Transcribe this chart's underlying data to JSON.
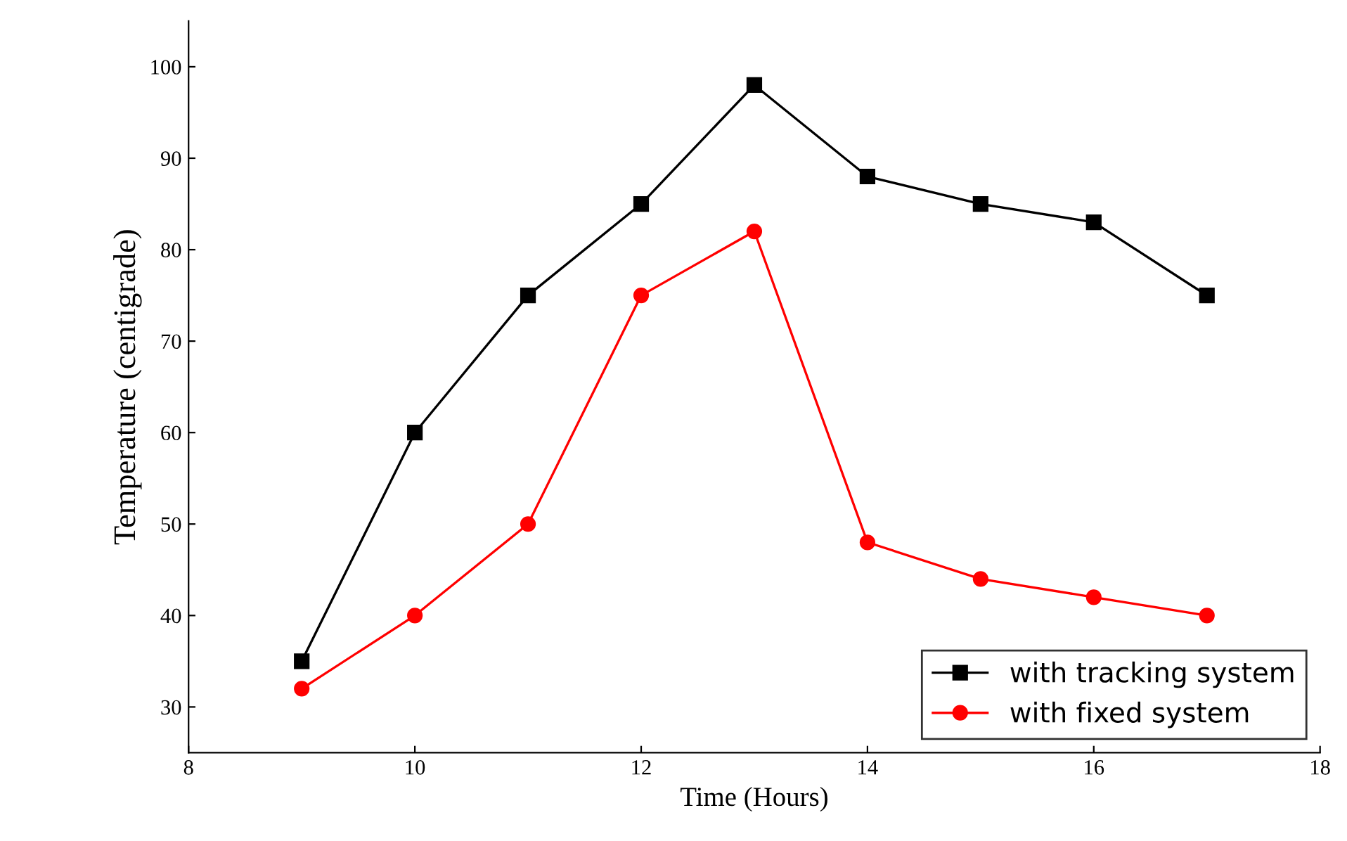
{
  "chart_data": {
    "type": "line",
    "xlabel": "Time (Hours)",
    "ylabel": "Temperature (centigrade)",
    "x": [
      9,
      10,
      11,
      12,
      13,
      14,
      15,
      16,
      17
    ],
    "series": [
      {
        "name": "with tracking system",
        "color": "#000000",
        "marker": "square",
        "values": [
          35,
          60,
          75,
          85,
          98,
          88,
          85,
          83,
          75
        ]
      },
      {
        "name": "with fixed system",
        "color": "#ff0000",
        "marker": "circle",
        "values": [
          32,
          40,
          50,
          75,
          82,
          48,
          44,
          42,
          40
        ]
      }
    ],
    "xlim": [
      8,
      18
    ],
    "xticks": [
      8,
      10,
      12,
      14,
      16,
      18
    ],
    "ylim": [
      25,
      105
    ],
    "yticks": [
      30,
      40,
      50,
      60,
      70,
      80,
      90,
      100
    ],
    "grid": false,
    "legend": "bottom right"
  }
}
